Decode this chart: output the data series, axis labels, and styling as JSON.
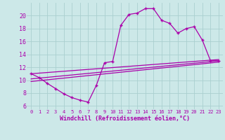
{
  "xlabel": "Windchill (Refroidissement éolien,°C)",
  "bg_color": "#cce8e8",
  "grid_color": "#aacfcf",
  "line_color": "#aa00aa",
  "xlim": [
    -0.5,
    23.5
  ],
  "ylim": [
    5.5,
    22.0
  ],
  "yticks": [
    6,
    8,
    10,
    12,
    14,
    16,
    18,
    20
  ],
  "xticks": [
    0,
    1,
    2,
    3,
    4,
    5,
    6,
    7,
    8,
    9,
    10,
    11,
    12,
    13,
    14,
    15,
    16,
    17,
    18,
    19,
    20,
    21,
    22,
    23
  ],
  "curve1_x": [
    0,
    1,
    2,
    3,
    4,
    5,
    6,
    7,
    8,
    9,
    10,
    11,
    12,
    13,
    14,
    15,
    16,
    17,
    18,
    19,
    20,
    21,
    22,
    23
  ],
  "curve1_y": [
    11.0,
    10.4,
    9.5,
    8.7,
    7.9,
    7.3,
    6.9,
    6.6,
    9.2,
    12.7,
    12.9,
    18.5,
    20.2,
    20.4,
    21.1,
    21.1,
    19.3,
    18.8,
    17.3,
    18.0,
    18.3,
    16.2,
    13.0,
    13.0
  ],
  "line1_x": [
    0,
    23
  ],
  "line1_y": [
    9.8,
    12.8
  ],
  "line2_x": [
    0,
    23
  ],
  "line2_y": [
    11.0,
    13.2
  ],
  "line3_x": [
    0,
    23
  ],
  "line3_y": [
    10.2,
    13.0
  ]
}
